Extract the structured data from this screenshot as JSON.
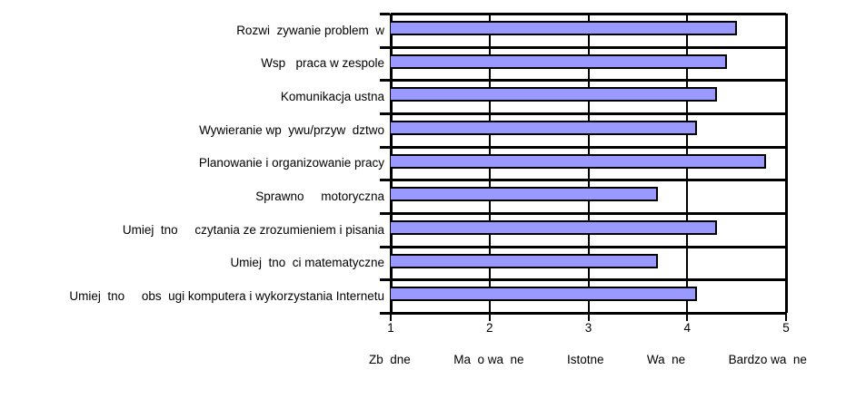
{
  "chart_data": {
    "type": "bar",
    "orientation": "horizontal",
    "title": "",
    "categories": [
      "Rozwi  zywanie problem  w",
      "Wsp   praca w zespole",
      "Komunikacja ustna",
      "Wywieranie wp  ywu/przyw  dztwo",
      "Planowanie i organizowanie pracy",
      "Sprawno     motoryczna",
      "Umiej  tno     czytania ze zrozumieniem i pisania",
      "Umiej  tno  ci matematyczne",
      "Umiej  tno     obs  ugi komputera i wykorzystania Internetu"
    ],
    "values": [
      4.5,
      4.4,
      4.3,
      4.1,
      4.8,
      3.7,
      4.3,
      3.7,
      4.1
    ],
    "xlim": [
      1,
      5
    ],
    "x_ticks": [
      "1",
      "2",
      "3",
      "4",
      "5"
    ],
    "x_tick_descriptions": [
      "Zb  dne",
      "Ma  o wa  ne",
      "Istotne",
      "Wa  ne",
      "Bardzo wa  ne"
    ],
    "legend": "none",
    "grid": {
      "vertical_gridlines_at": [
        2,
        3,
        4
      ],
      "horizontal_category_separators": true
    },
    "colors": {
      "bar_fill": "#9999FF",
      "bar_border": "#000000",
      "axis_line": "#000000",
      "gridline": "#000000",
      "background": "#FFFFFF"
    }
  }
}
